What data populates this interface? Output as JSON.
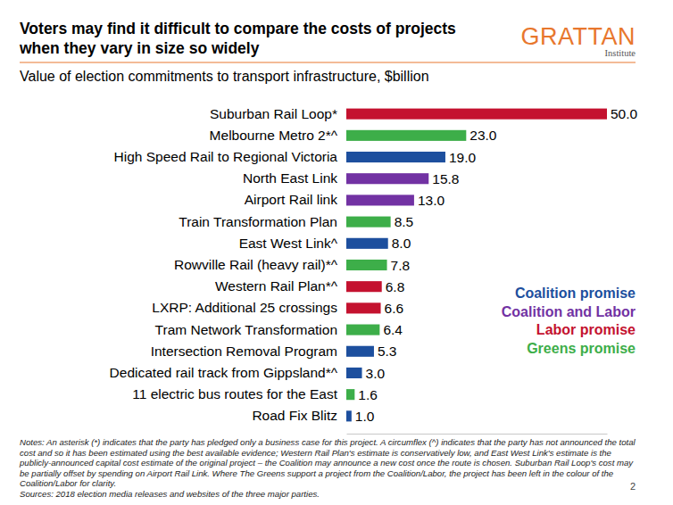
{
  "chart_data": {
    "type": "bar",
    "orientation": "horizontal",
    "stacked": true,
    "data_labels": true,
    "tick_labels": "y",
    "title": "Voters may find it difficult to compare the costs of projects when they vary in size so widely",
    "subtitle": "Value of election commitments to transport infrastructure, $billion",
    "categories": [
      "Suburban Rail Loop*",
      "Melbourne Metro 2*^",
      "High Speed Rail to Regional Victoria",
      "North East Link",
      "Airport Rail link",
      "Train Transformation Plan",
      "East West Link^",
      "Rowville Rail (heavy rail)*^",
      "Western Rail Plan*^",
      "LXRP: Additional 25 crossings",
      "Tram Network Transformation",
      "Intersection Removal Program",
      "Dedicated rail track from Gippsland*^",
      "11 electric bus routes for the East",
      "Road Fix Blitz"
    ],
    "xlim": [
      0,
      50
    ],
    "xticks": [],
    "series": [
      {
        "name": "Coalition promise",
        "color": "#1d4f9e",
        "values": [
          null,
          null,
          19,
          null,
          null,
          null,
          8,
          null,
          null,
          null,
          null,
          5.3,
          3,
          null,
          1
        ],
        "value_labels": [
          null,
          null,
          "19.0",
          null,
          null,
          null,
          "8.0",
          null,
          null,
          null,
          null,
          "5.3",
          "3.0",
          null,
          "1.0"
        ]
      },
      {
        "name": "Coalition and Labor",
        "color": "#7232a3",
        "values": [
          null,
          null,
          null,
          15.8,
          13,
          null,
          null,
          null,
          null,
          null,
          null,
          null,
          null,
          null,
          null
        ],
        "value_labels": [
          null,
          null,
          null,
          "15.8",
          "13.0",
          null,
          null,
          null,
          null,
          null,
          null,
          null,
          null,
          null,
          null
        ]
      },
      {
        "name": "Labor promise",
        "color": "#c4122f",
        "values": [
          50,
          null,
          null,
          null,
          null,
          null,
          null,
          null,
          6.8,
          6.6,
          null,
          null,
          null,
          null,
          null
        ],
        "value_labels": [
          "50.0",
          null,
          null,
          null,
          null,
          null,
          null,
          null,
          "6.8",
          "6.6",
          null,
          null,
          null,
          null,
          null
        ]
      },
      {
        "name": "Greens promise",
        "color": "#3dae49",
        "values": [
          null,
          23,
          null,
          null,
          null,
          8.5,
          null,
          7.8,
          null,
          null,
          6.4,
          null,
          null,
          1.6,
          null
        ],
        "value_labels": [
          null,
          "23.0",
          null,
          null,
          null,
          "8.5",
          null,
          "7.8",
          null,
          null,
          "6.4",
          null,
          null,
          "1.6",
          null
        ]
      }
    ],
    "annotations": [
      "GRATTAN",
      "Institute",
      "Notes: An asterisk (*) indicates that the party has pledged only a business case for this project. A circumflex (^) indicates that the party has not announced the total cost and so it has been estimated using the best available evidence; Western Rail Plan's estimate is conservatively low, and East West Link's estimate is the publicly-announced capital cost estimate of the original project – the Coalition may announce a new cost once the route is chosen. Suburban Rail Loop's cost may be partially offset by spending on Airport Rail Link. Where The Greens support a project from the Coalition/Labor, the project has been left in the colour of the Coalition/Labor for clarity.",
      "Sources: 2018 election media releases and websites of the three major parties.",
      "2"
    ]
  }
}
